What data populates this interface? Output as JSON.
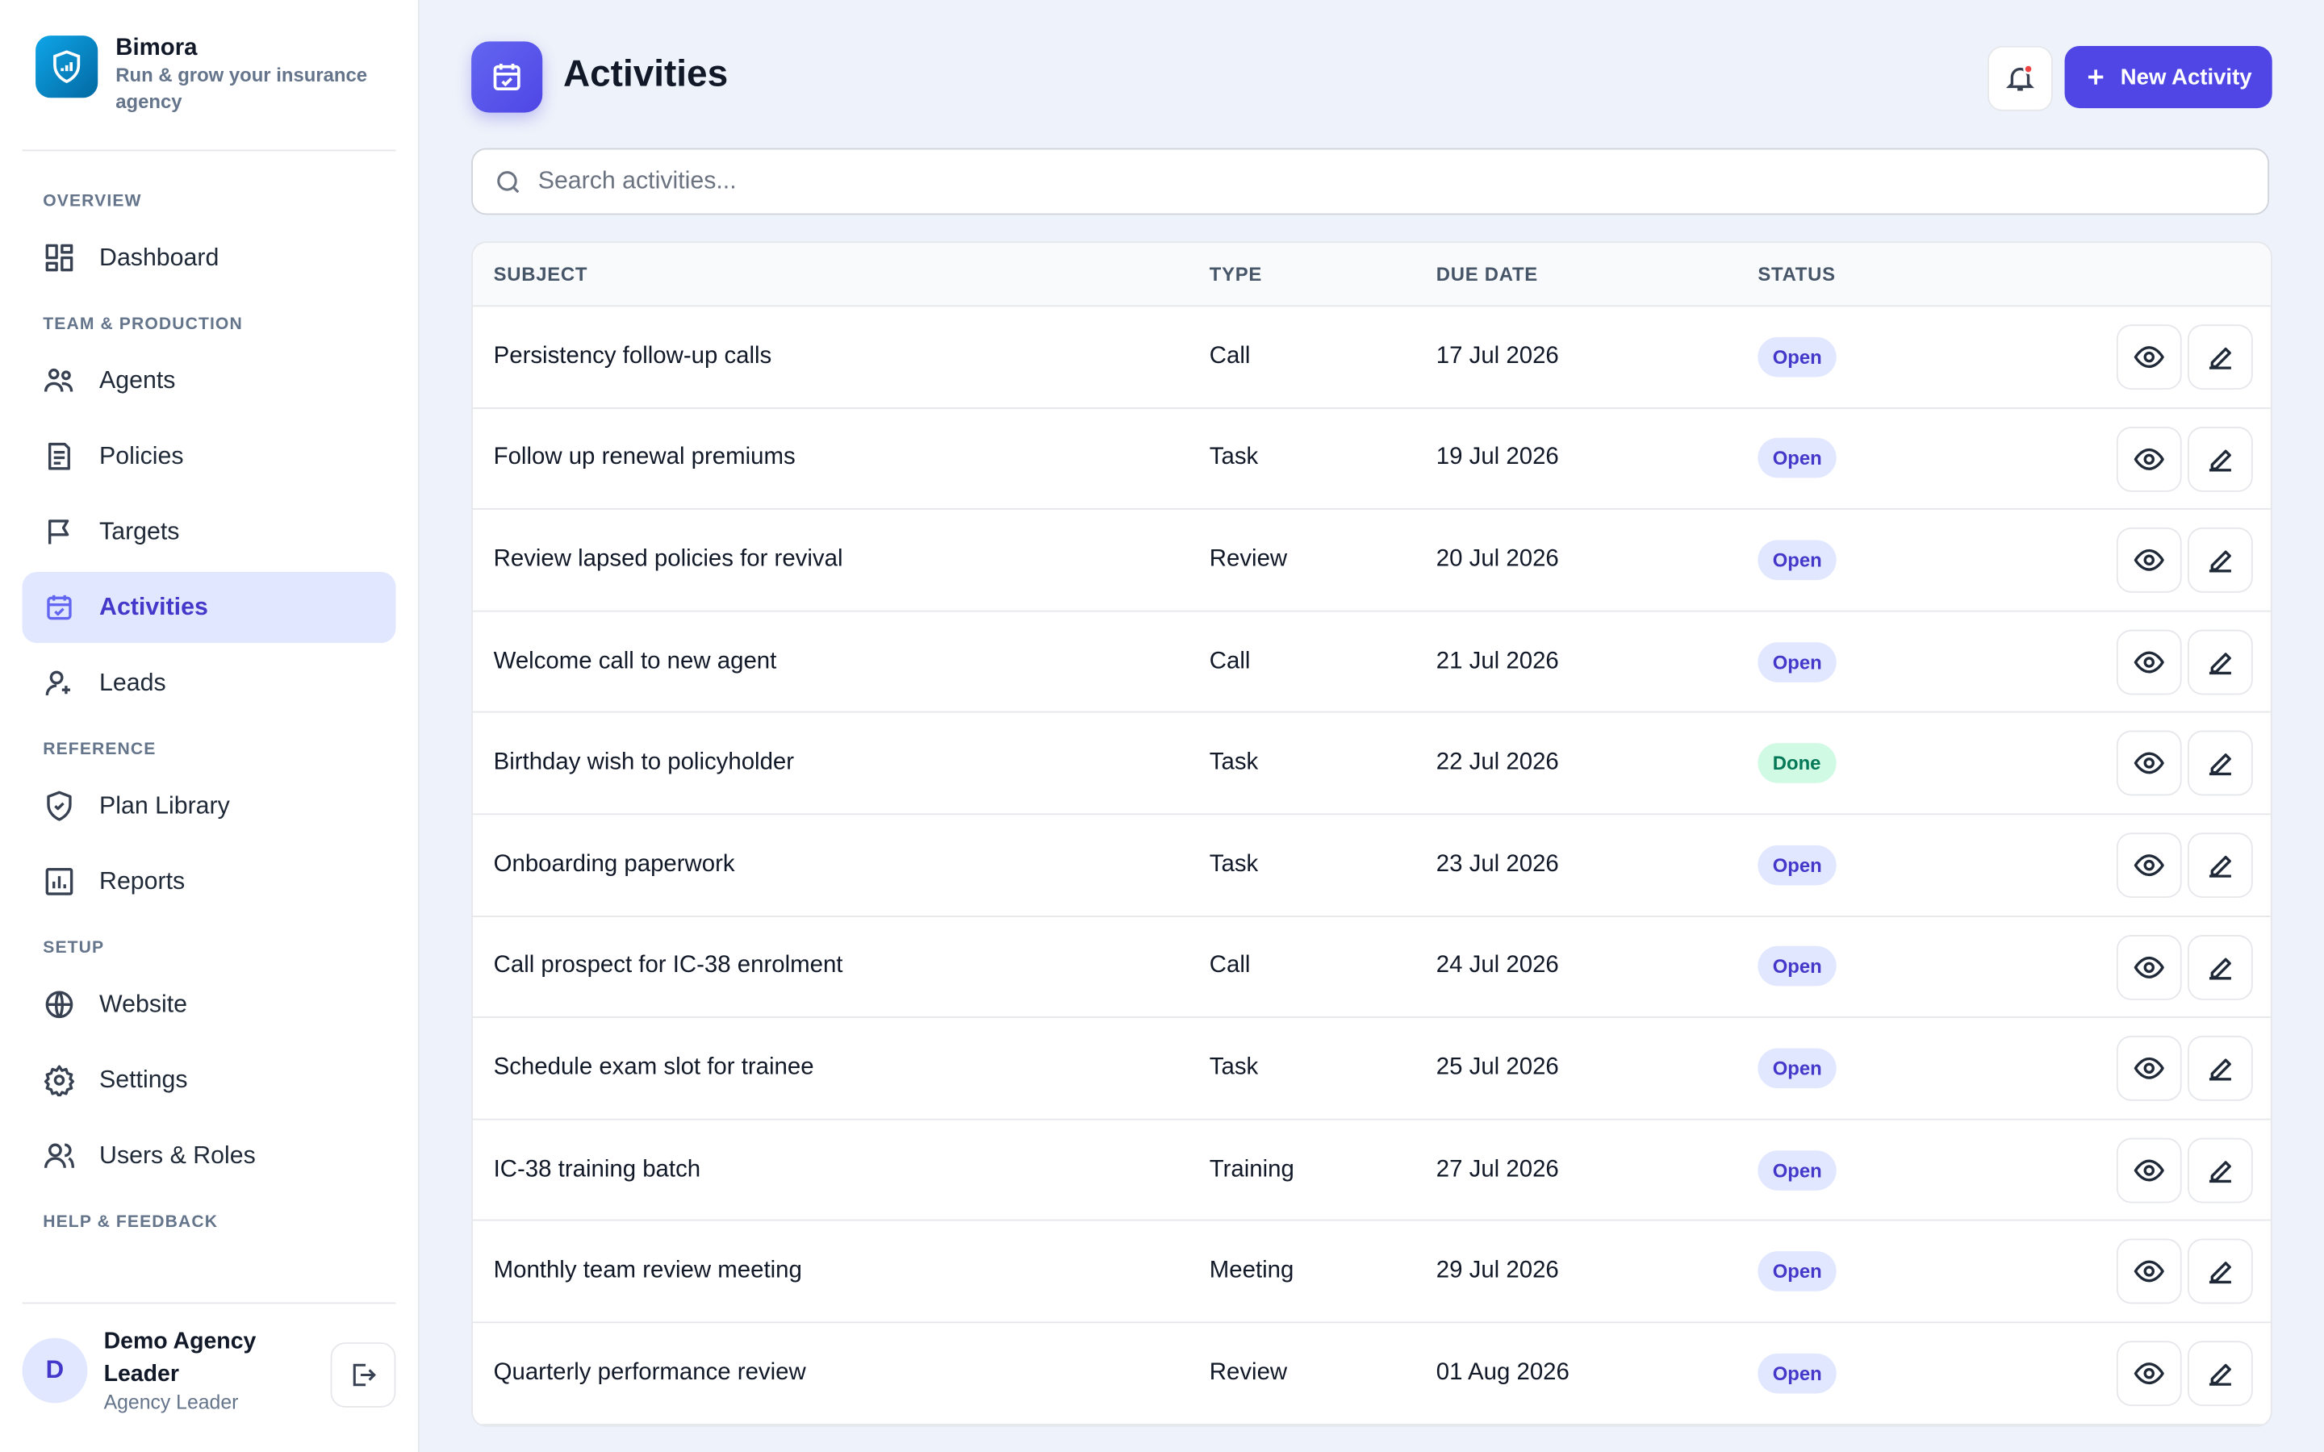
{
  "brand": {
    "name": "Bimora",
    "tagline": "Run & grow your insurance agency"
  },
  "nav": [
    {
      "section": "OVERVIEW",
      "items": [
        "Dashboard"
      ]
    },
    {
      "section": "TEAM & PRODUCTION",
      "items": [
        "Agents",
        "Policies",
        "Targets",
        "Activities",
        "Leads"
      ]
    },
    {
      "section": "REFERENCE",
      "items": [
        "Plan Library",
        "Reports"
      ]
    },
    {
      "section": "SETUP",
      "items": [
        "Website",
        "Settings",
        "Users & Roles"
      ]
    },
    {
      "section": "HELP & FEEDBACK",
      "items": []
    }
  ],
  "active_item": "Activities",
  "user": {
    "initial": "D",
    "name": "Demo Agency Leader",
    "role": "Agency Leader"
  },
  "header": {
    "title": "Activities",
    "button": "New Activity"
  },
  "search": {
    "placeholder": "Search activities..."
  },
  "table": {
    "columns": [
      "SUBJECT",
      "TYPE",
      "DUE DATE",
      "STATUS"
    ],
    "rows": [
      {
        "subject": "Persistency follow-up calls",
        "type": "Call",
        "due": "17 Jul 2026",
        "status": "Open",
        "status_color": "#4338ca",
        "status_bg": "#e0e7ff"
      },
      {
        "subject": "Follow up renewal premiums",
        "type": "Task",
        "due": "19 Jul 2026",
        "status": "Open",
        "status_color": "#4338ca",
        "status_bg": "#e0e7ff"
      },
      {
        "subject": "Review lapsed policies for revival",
        "type": "Review",
        "due": "20 Jul 2026",
        "status": "Open",
        "status_color": "#4338ca",
        "status_bg": "#e0e7ff"
      },
      {
        "subject": "Welcome call to new agent",
        "type": "Call",
        "due": "21 Jul 2026",
        "status": "Open",
        "status_color": "#4338ca",
        "status_bg": "#e0e7ff"
      },
      {
        "subject": "Birthday wish to policyholder",
        "type": "Task",
        "due": "22 Jul 2026",
        "status": "Done",
        "status_color": "#047857",
        "status_bg": "#d1fae5"
      },
      {
        "subject": "Onboarding paperwork",
        "type": "Task",
        "due": "23 Jul 2026",
        "status": "Open",
        "status_color": "#4338ca",
        "status_bg": "#e0e7ff"
      },
      {
        "subject": "Call prospect for IC-38 enrolment",
        "type": "Call",
        "due": "24 Jul 2026",
        "status": "Open",
        "status_color": "#4338ca",
        "status_bg": "#e0e7ff"
      },
      {
        "subject": "Schedule exam slot for trainee",
        "type": "Task",
        "due": "25 Jul 2026",
        "status": "Open",
        "status_color": "#4338ca",
        "status_bg": "#e0e7ff"
      },
      {
        "subject": "IC-38 training batch",
        "type": "Training",
        "due": "27 Jul 2026",
        "status": "Open",
        "status_color": "#4338ca",
        "status_bg": "#e0e7ff"
      },
      {
        "subject": "Monthly team review meeting",
        "type": "Meeting",
        "due": "29 Jul 2026",
        "status": "Open",
        "status_color": "#4338ca",
        "status_bg": "#e0e7ff"
      },
      {
        "subject": "Quarterly performance review",
        "type": "Review",
        "due": "01 Aug 2026",
        "status": "Open",
        "status_color": "#4338ca",
        "status_bg": "#e0e7ff"
      }
    ]
  }
}
